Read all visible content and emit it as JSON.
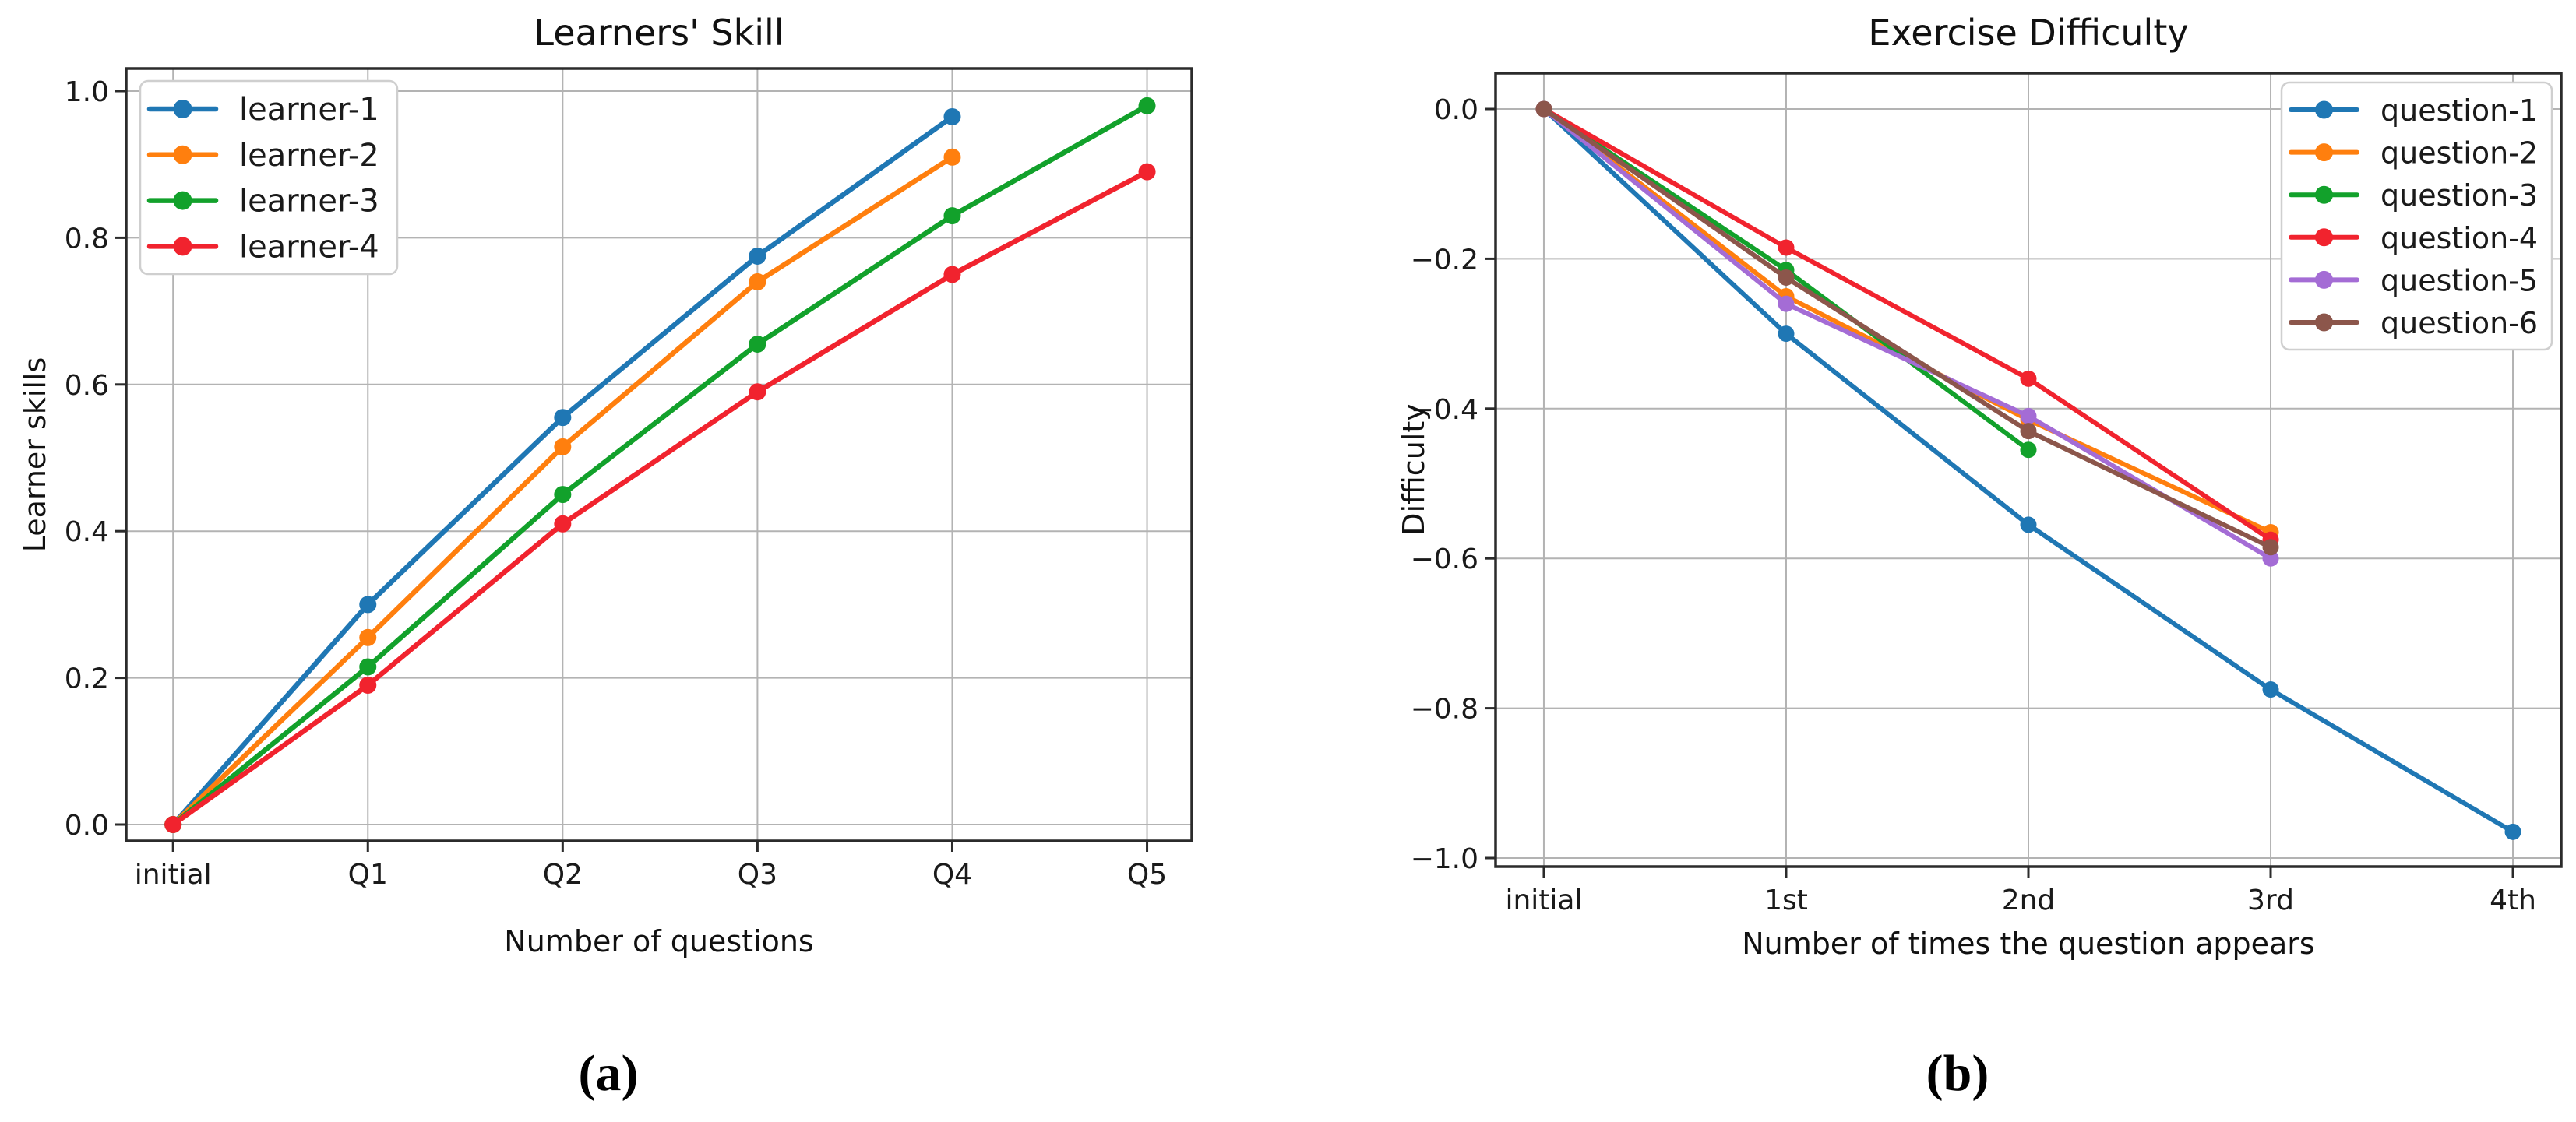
{
  "page": {
    "background": "#ffffff"
  },
  "chart_data": [
    {
      "id": "learners-skill",
      "type": "line",
      "title": "Learners' Skill",
      "xlabel": "Number of questions",
      "ylabel": "Learner skills",
      "caption": "(a)",
      "categories": [
        "initial",
        "Q1",
        "Q2",
        "Q3",
        "Q4",
        "Q5"
      ],
      "yticks": [
        1.0,
        0.8,
        0.6,
        0.4,
        0.2,
        0.0
      ],
      "ytick_labels": [
        "1.0",
        "0.8",
        "0.6",
        "0.4",
        "0.2",
        "0.0"
      ],
      "ylim": [
        -0.022,
        1.031
      ],
      "grid": true,
      "legend_position": "upper left",
      "series": [
        {
          "name": "learner-1",
          "color": "#1f77b4",
          "values": [
            0.0,
            0.3,
            0.555,
            0.775,
            0.965,
            null
          ]
        },
        {
          "name": "learner-2",
          "color": "#ff7f0e",
          "values": [
            0.0,
            0.255,
            0.515,
            0.74,
            0.91,
            null
          ]
        },
        {
          "name": "learner-3",
          "color": "#12a12b",
          "values": [
            0.0,
            0.215,
            0.45,
            0.655,
            0.83,
            0.98
          ]
        },
        {
          "name": "learner-4",
          "color": "#f1232e",
          "values": [
            0.0,
            0.19,
            0.41,
            0.59,
            0.75,
            0.89
          ]
        }
      ]
    },
    {
      "id": "exercise-difficulty",
      "type": "line",
      "title": "Exercise Difficulty",
      "xlabel": "Number of times the question appears",
      "ylabel": "Difficulty",
      "caption": "(b)",
      "categories": [
        "initial",
        "1st",
        "2nd",
        "3rd",
        "4th"
      ],
      "yticks": [
        0.0,
        -0.2,
        -0.4,
        -0.6,
        -0.8,
        -1.0
      ],
      "ytick_labels": [
        "0.0",
        "−0.2",
        "−0.4",
        "−0.6",
        "−0.8",
        "−1.0"
      ],
      "ylim": [
        0.048,
        -1.011
      ],
      "grid": true,
      "legend_position": "upper right",
      "series": [
        {
          "name": "question-1",
          "color": "#1f77b4",
          "values": [
            0.0,
            -0.3,
            -0.555,
            -0.775,
            -0.965
          ]
        },
        {
          "name": "question-2",
          "color": "#ff7f0e",
          "values": [
            0.0,
            -0.25,
            -0.415,
            -0.565,
            null
          ]
        },
        {
          "name": "question-3",
          "color": "#12a12b",
          "values": [
            0.0,
            -0.215,
            -0.455,
            null,
            null
          ]
        },
        {
          "name": "question-4",
          "color": "#f1232e",
          "values": [
            0.0,
            -0.185,
            -0.36,
            -0.575,
            null
          ]
        },
        {
          "name": "question-5",
          "color": "#a46cd5",
          "values": [
            0.0,
            -0.26,
            -0.41,
            -0.6,
            null
          ]
        },
        {
          "name": "question-6",
          "color": "#8c564b",
          "values": [
            0.0,
            -0.225,
            -0.43,
            -0.585,
            null
          ]
        }
      ]
    }
  ]
}
